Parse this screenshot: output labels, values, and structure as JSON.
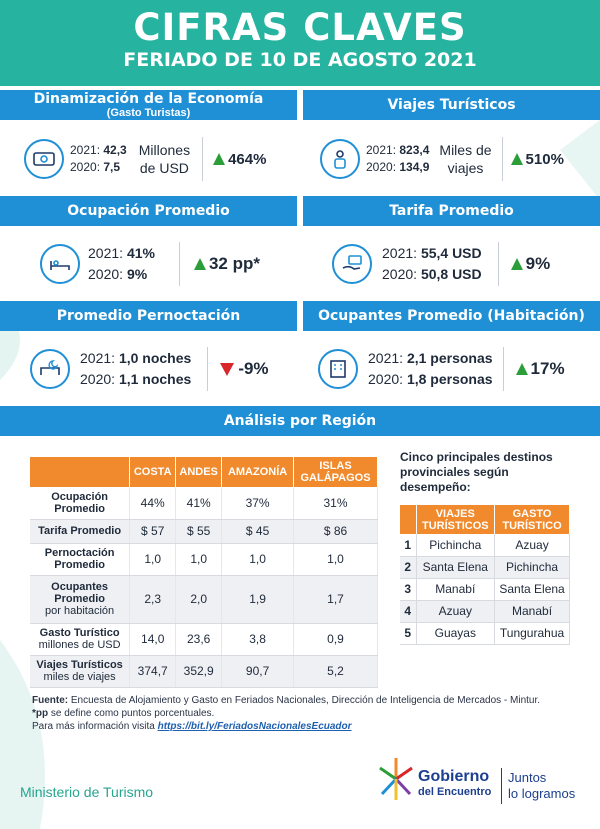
{
  "header": {
    "title": "CIFRAS CLAVES",
    "subtitle": "FERIADO DE 10 DE AGOSTO 2021"
  },
  "cards": {
    "economia": {
      "title": "Dinamización de la Economía",
      "subtitle": "(Gasto Turistas)",
      "icon": "money-icon",
      "y2021_label": "2021:",
      "y2021_value": "42,3",
      "y2020_label": "2020:",
      "y2020_value": "7,5",
      "unit_line1": "Millones",
      "unit_line2": "de USD",
      "change": "464%"
    },
    "viajes": {
      "title": "Viajes Turísticos",
      "icon": "traveler-icon",
      "y2021_label": "2021:",
      "y2021_value": "823,4",
      "y2020_label": "2020:",
      "y2020_value": "134,9",
      "unit_line1": "Miles de",
      "unit_line2": "viajes",
      "change": "510%"
    },
    "ocupacion": {
      "title": "Ocupación Promedio",
      "icon": "bed-icon",
      "y2021_label": "2021:",
      "y2021_value": "41%",
      "y2020_label": "2020:",
      "y2020_value": "9%",
      "change": "32 pp*"
    },
    "tarifa": {
      "title": "Tarifa Promedio",
      "icon": "hand-money-icon",
      "y2021_label": "2021:",
      "y2021_value": "55,4 USD",
      "y2020_label": "2020:",
      "y2020_value": "50,8 USD",
      "change": "9%"
    },
    "pernoctacion": {
      "title": "Promedio Pernoctación",
      "icon": "night-bed-icon",
      "y2021_label": "2021:",
      "y2021_value": "1,0 noches",
      "y2020_label": "2020:",
      "y2020_value": "1,1 noches",
      "change": "-9%"
    },
    "ocupantes": {
      "title": "Ocupantes Promedio (Habitación)",
      "icon": "hotel-icon",
      "y2021_label": "2021:",
      "y2021_value": "2,1 personas",
      "y2020_label": "2020:",
      "y2020_value": "1,8 personas",
      "change": "17%"
    }
  },
  "region": {
    "title": "Análisis por Región",
    "columns": [
      "COSTA",
      "ANDES",
      "AMAZONÍA",
      "ISLAS GALÁPAGOS"
    ],
    "rows": [
      {
        "label": "Ocupación Promedio",
        "sublabel": "",
        "values": [
          "44%",
          "41%",
          "37%",
          "31%"
        ]
      },
      {
        "label": "Tarifa Promedio",
        "sublabel": "",
        "values": [
          "$ 57",
          "$ 55",
          "$ 45",
          "$ 86"
        ]
      },
      {
        "label": "Pernoctación Promedio",
        "sublabel": "",
        "values": [
          "1,0",
          "1,0",
          "1,0",
          "1,0"
        ]
      },
      {
        "label": "Ocupantes Promedio",
        "sublabel": "por habitación",
        "values": [
          "2,3",
          "2,0",
          "1,9",
          "1,7"
        ]
      },
      {
        "label": "Gasto Turístico",
        "sublabel": "millones de USD",
        "values": [
          "14,0",
          "23,6",
          "3,8",
          "0,9"
        ]
      },
      {
        "label": "Viajes Turísticos",
        "sublabel": "miles de viajes",
        "values": [
          "374,7",
          "352,9",
          "90,7",
          "5,2"
        ]
      }
    ]
  },
  "top5": {
    "title": "Cinco principales destinos provinciales según desempeño:",
    "col1": "VIAJES TURÍSTICOS",
    "col2": "GASTO TURÍSTICO",
    "rows": [
      {
        "n": "1",
        "viajes": "Pichincha",
        "gasto": "Azuay"
      },
      {
        "n": "2",
        "viajes": "Santa Elena",
        "gasto": "Pichincha"
      },
      {
        "n": "3",
        "viajes": "Manabí",
        "gasto": "Santa Elena"
      },
      {
        "n": "4",
        "viajes": "Azuay",
        "gasto": "Manabí"
      },
      {
        "n": "5",
        "viajes": "Guayas",
        "gasto": "Tungurahua"
      }
    ]
  },
  "footer": {
    "source_label": "Fuente:",
    "source_text": " Encuesta de Alojamiento y Gasto en Feriados Nacionales, Dirección de Inteligencia de Mercados - Mintur.",
    "pp_label": "*pp",
    "pp_text": " se define como puntos porcentuales.",
    "more_text": "Para más información visita ",
    "link": "https://bit.ly/FeriadosNacionalesEcuador"
  },
  "branding": {
    "ministry": "Ministerio de Turismo",
    "gov1": "Gobierno",
    "gov2": "del Encuentro",
    "slogan1": "Juntos",
    "slogan2": "lo logramos"
  },
  "colors": {
    "header": "#26b3a0",
    "band": "#1f8fd6",
    "table_header": "#f08a2c",
    "up": "#2b9e3a",
    "down": "#d9262b"
  }
}
